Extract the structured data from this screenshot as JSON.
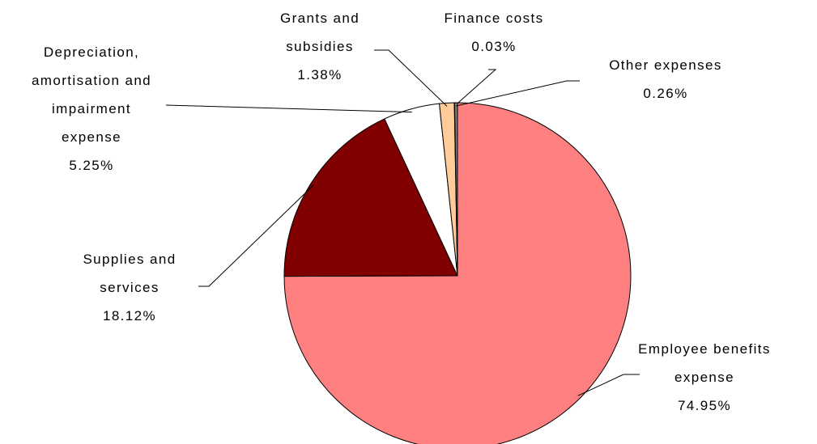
{
  "chart_data": {
    "type": "pie",
    "categories": [
      "Employee benefits\nexpense",
      "Supplies and\nservices",
      "Depreciation,\namortisation and\nimpairment\nexpense",
      "Grants and\nsubsidies",
      "Finance costs",
      "Other expenses"
    ],
    "values": [
      74.95,
      18.12,
      5.25,
      1.38,
      0.03,
      0.26
    ],
    "value_labels": [
      "74.95%",
      "18.12%",
      "5.25%",
      "1.38%",
      "0.03%",
      "0.26%"
    ],
    "colors": [
      "#ff8080",
      "#800000",
      "#ffffff",
      "#ffcc99",
      "#993366",
      "#808080"
    ]
  }
}
